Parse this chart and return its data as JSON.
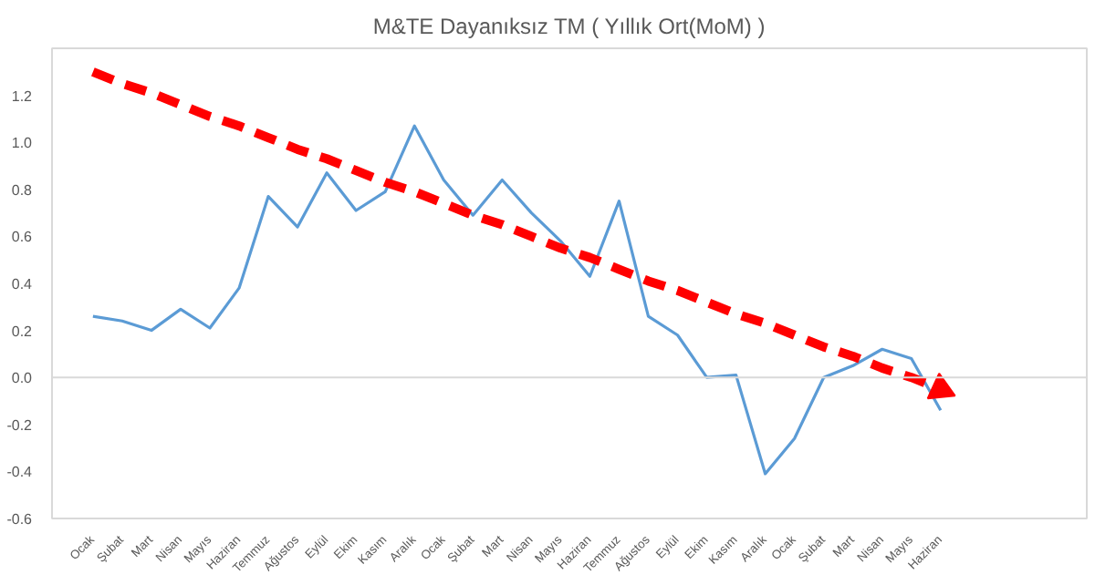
{
  "chart_data": {
    "type": "line",
    "title": "M&TE Dayanıksız TM ( Yıllık Ort(MoM) )",
    "categories": [
      "Ocak",
      "Şubat",
      "Mart",
      "Nisan",
      "Mayıs",
      "Haziran",
      "Temmuz",
      "Ağustos",
      "Eylül",
      "Ekim",
      "Kasım",
      "Aralık",
      "Ocak",
      "Şubat",
      "Mart",
      "Nisan",
      "Mayıs",
      "Haziran",
      "Temmuz",
      "Ağustos",
      "Eylül",
      "Ekim",
      "Kasım",
      "Aralık",
      "Ocak",
      "Şubat",
      "Mart",
      "Nisan",
      "Mayıs",
      "Haziran"
    ],
    "series": [
      {
        "color": "#5b9bd5",
        "values": [
          0.26,
          0.24,
          0.2,
          0.29,
          0.21,
          0.38,
          0.77,
          0.64,
          0.87,
          0.71,
          0.79,
          1.07,
          0.84,
          0.69,
          0.84,
          0.7,
          0.58,
          0.43,
          0.75,
          0.26,
          0.18,
          0.0,
          0.01,
          -0.41,
          -0.26,
          0.0,
          0.05,
          0.12,
          0.08,
          -0.14
        ]
      },
      {
        "type": "line",
        "color": "#ff0000",
        "line_style": "dashed",
        "values": [
          1.3,
          1.25,
          1.21,
          1.16,
          1.11,
          1.07,
          1.02,
          0.97,
          0.93,
          0.88,
          0.83,
          0.79,
          0.74,
          0.69,
          0.65,
          0.6,
          0.55,
          0.51,
          0.46,
          0.41,
          0.37,
          0.32,
          0.27,
          0.23,
          0.18,
          0.13,
          0.09,
          0.04,
          0.0,
          -0.05
        ]
      }
    ],
    "ylim": [
      -0.6,
      1.4
    ],
    "yticks": [
      {
        "value": -0.6,
        "label": "-0.6"
      },
      {
        "value": -0.4,
        "label": "-0.4"
      },
      {
        "value": -0.2,
        "label": "-0.2"
      },
      {
        "value": 0,
        "label": "0.0"
      },
      {
        "value": 0.2,
        "label": "0.2"
      },
      {
        "value": 0.4,
        "label": "0.4"
      },
      {
        "value": 0.6,
        "label": "0.6"
      },
      {
        "value": 0.8,
        "label": "0.8"
      },
      {
        "value": 1.0,
        "label": "1.0"
      },
      {
        "value": 1.2,
        "label": "1.2"
      }
    ],
    "ref_lines": [
      {
        "axis": "y",
        "value": 0,
        "color": "#d9d9d9"
      }
    ],
    "grid": false,
    "marker": "none",
    "line_style": "solid"
  }
}
